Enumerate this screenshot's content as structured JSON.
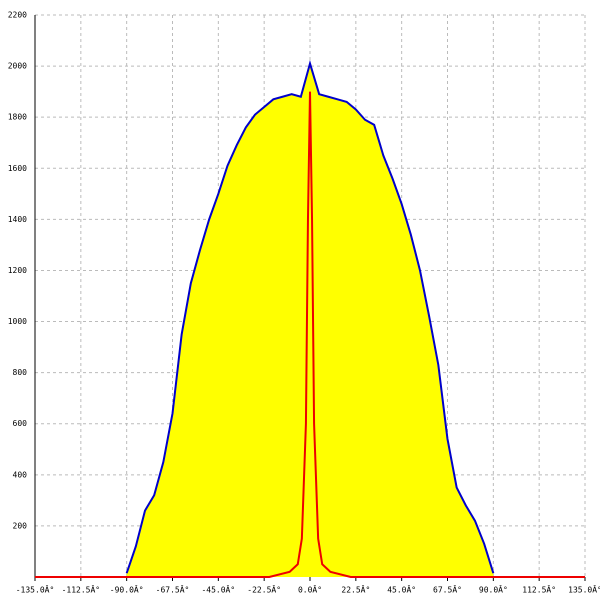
{
  "chart_data": {
    "type": "area",
    "xlim": [
      -135,
      135
    ],
    "ylim": [
      0,
      2200
    ],
    "xticks": [
      {
        "value": -135,
        "label": "-135.0Â°"
      },
      {
        "value": -112.5,
        "label": "-112.5Â°"
      },
      {
        "value": -90,
        "label": "-90.0Â°"
      },
      {
        "value": -67.5,
        "label": "-67.5Â°"
      },
      {
        "value": -45,
        "label": "-45.0Â°"
      },
      {
        "value": -22.5,
        "label": "-22.5Â°"
      },
      {
        "value": 0,
        "label": "0.0Â°"
      },
      {
        "value": 22.5,
        "label": "22.5Â°"
      },
      {
        "value": 45,
        "label": "45.0Â°"
      },
      {
        "value": 67.5,
        "label": "67.5Â°"
      },
      {
        "value": 90,
        "label": "90.0Â°"
      },
      {
        "value": 112.5,
        "label": "112.5Â°"
      },
      {
        "value": 135,
        "label": "135.0Â°"
      }
    ],
    "yticks": [
      200,
      400,
      600,
      800,
      1000,
      1200,
      1400,
      1600,
      1800,
      2000,
      2200
    ],
    "grid": true,
    "series": [
      {
        "color": "#0000cc",
        "fill": "#ffff00",
        "x": [
          -90,
          -85.5,
          -81,
          -76.5,
          -72,
          -67.5,
          -63,
          -58.5,
          -54,
          -49.5,
          -45,
          -40.5,
          -36,
          -31.5,
          -27,
          -22.5,
          -18,
          -13.5,
          -9,
          -4.5,
          0,
          4.5,
          9,
          13.5,
          18,
          22.5,
          27,
          31.5,
          36,
          40.5,
          45,
          49.5,
          54,
          58.5,
          63,
          67.5,
          72,
          76.5,
          81,
          85.5,
          90
        ],
        "values": [
          15,
          120,
          260,
          320,
          450,
          640,
          950,
          1150,
          1280,
          1400,
          1500,
          1610,
          1690,
          1760,
          1810,
          1840,
          1870,
          1880,
          1890,
          1880,
          2010,
          1890,
          1880,
          1870,
          1860,
          1830,
          1790,
          1770,
          1650,
          1560,
          1460,
          1340,
          1200,
          1020,
          830,
          540,
          350,
          280,
          220,
          130,
          15
        ]
      },
      {
        "color": "#ee0000",
        "x": [
          -135,
          -20,
          -10,
          -6,
          -4,
          -2,
          -1,
          0,
          1,
          2,
          4,
          6,
          10,
          20,
          135
        ],
        "values": [
          0,
          0,
          20,
          50,
          150,
          600,
          1400,
          1900,
          1400,
          600,
          150,
          50,
          20,
          0,
          0
        ]
      }
    ]
  }
}
